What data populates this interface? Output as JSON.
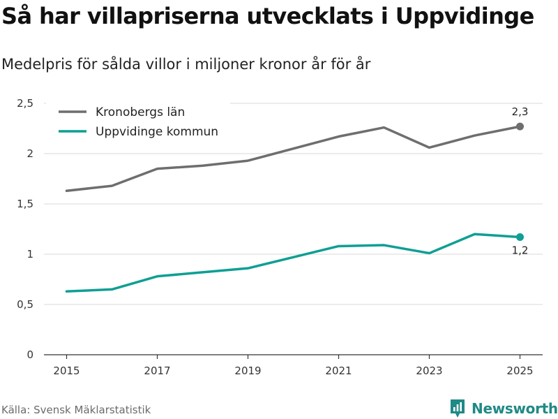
{
  "title": "Så har villapriserna utvecklats i Uppvidinge",
  "subtitle": "Medelpris för sålda villor i miljoner kronor år för år",
  "source": "Källa: Svensk Mäklarstatistik",
  "brand": "Newsworthy",
  "colors": {
    "kronoberg": "#6e6e6e",
    "uppvidinge": "#0f9f94",
    "grid": "#d9d9d9",
    "axis": "#333333",
    "brand": "#1f8a86"
  },
  "chart_data": {
    "type": "line",
    "title": "Så har villapriserna utvecklats i Uppvidinge",
    "subtitle": "Medelpris för sålda villor i miljoner kronor år för år",
    "xlabel": "",
    "ylabel": "",
    "x": [
      2015,
      2016,
      2017,
      2018,
      2019,
      2020,
      2021,
      2022,
      2023,
      2024,
      2025
    ],
    "xticks": [
      "2015",
      "2017",
      "2019",
      "2021",
      "2023",
      "2025"
    ],
    "xlim": [
      2014.5,
      2025.5
    ],
    "ylim": [
      0,
      2.5
    ],
    "yticks": [
      "0",
      "0,5",
      "1",
      "1,5",
      "2",
      "2,5"
    ],
    "grid": true,
    "legend": "top-left",
    "series": [
      {
        "name": "Kronobergs län",
        "key": "kronoberg",
        "values": [
          1.63,
          1.68,
          1.85,
          1.88,
          1.93,
          2.05,
          2.17,
          2.26,
          2.06,
          2.18,
          2.27
        ],
        "end_label": "2,3"
      },
      {
        "name": "Uppvidinge kommun",
        "key": "uppvidinge",
        "values": [
          0.63,
          0.65,
          0.78,
          0.82,
          0.86,
          0.97,
          1.08,
          1.09,
          1.01,
          1.2,
          1.17
        ],
        "end_label": "1,2"
      }
    ]
  }
}
